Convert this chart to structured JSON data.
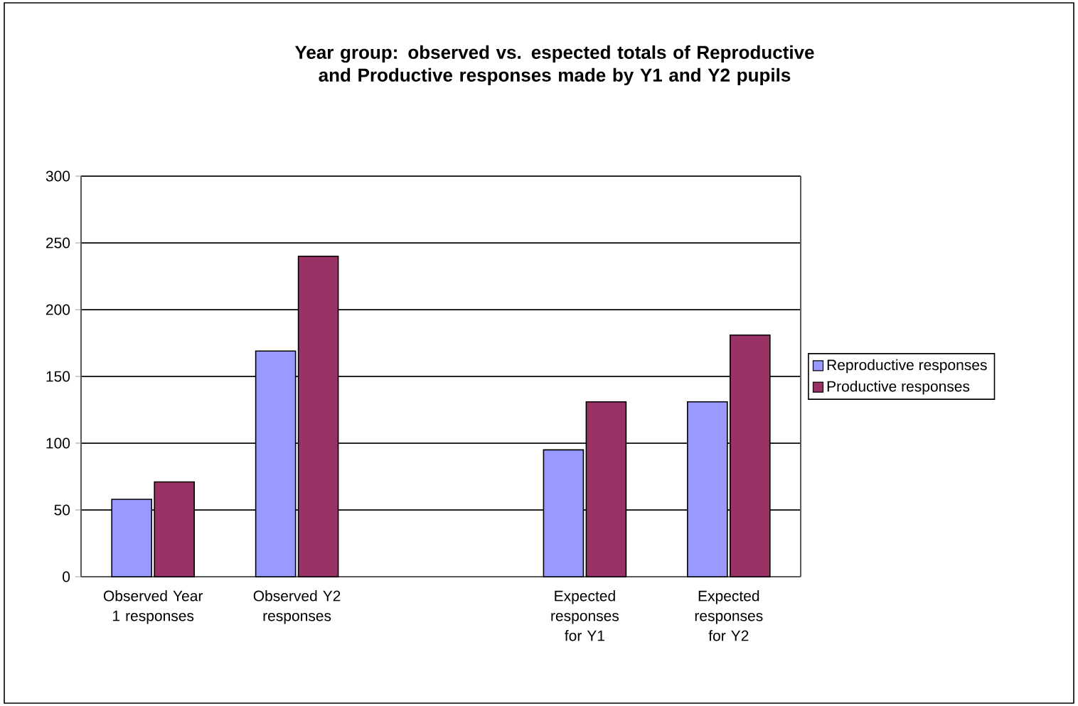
{
  "chart_data": {
    "type": "bar",
    "title": "Year group: observed vs. espected totals of Reproductive and Productive responses made by Y1 and Y2 pupils",
    "categories": [
      "Observed Year 1 responses",
      "Observed Y2 responses",
      null,
      "Expected responses for Y1",
      "Expected responses for Y2"
    ],
    "series": [
      {
        "name": "Reproductive responses",
        "color": "#9999ff",
        "values": [
          58,
          169,
          null,
          95,
          131
        ]
      },
      {
        "name": "Productive responses",
        "color": "#993366",
        "values": [
          71,
          240,
          null,
          131,
          181
        ]
      }
    ],
    "ylim": [
      0,
      300
    ],
    "yticks": [
      0,
      50,
      100,
      150,
      200,
      250,
      300
    ],
    "grid": "y",
    "legend": "right"
  }
}
